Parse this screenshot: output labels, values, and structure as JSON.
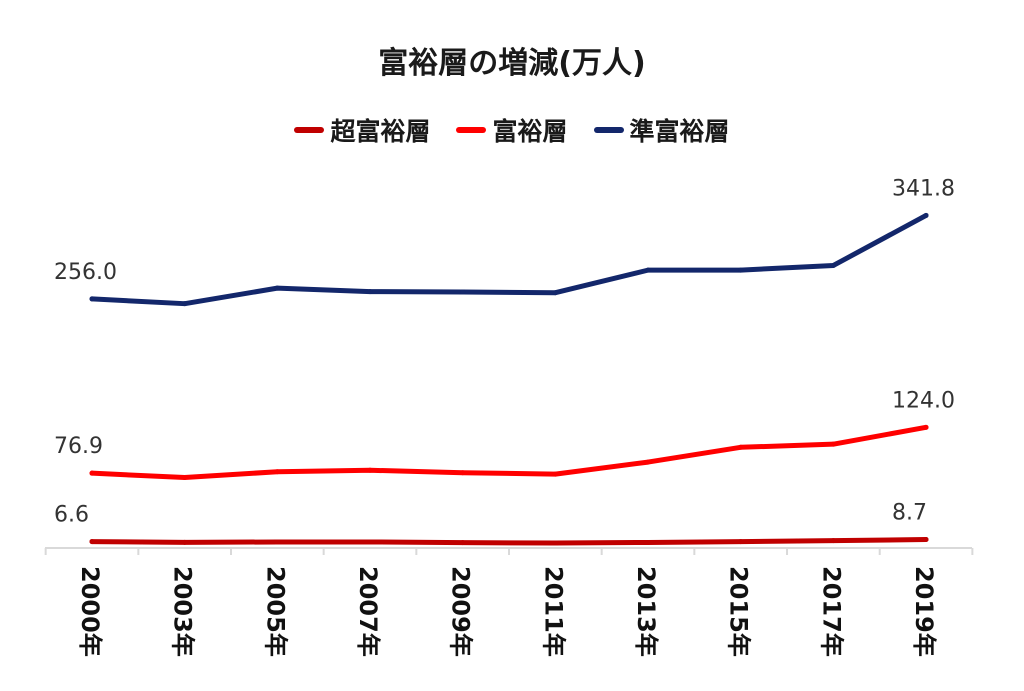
{
  "chart_data": {
    "type": "line",
    "title": "富裕層の増減(万人)",
    "categories": [
      "2000年",
      "2003年",
      "2005年",
      "2007年",
      "2009年",
      "2011年",
      "2013年",
      "2015年",
      "2017年",
      "2019年"
    ],
    "series": [
      {
        "name": "超富裕層",
        "color": "#c00000",
        "values": [
          6.6,
          5.8,
          6.2,
          6.2,
          5.5,
          5.1,
          5.7,
          6.6,
          7.6,
          8.7
        ],
        "labels": [
          {
            "index": 0,
            "text": "6.6"
          },
          {
            "index": 9,
            "text": "8.7"
          }
        ]
      },
      {
        "name": "富裕層",
        "color": "#ff0000",
        "values": [
          76.9,
          72.4,
          78.4,
          79.9,
          77.4,
          75.9,
          88.3,
          103.5,
          106.7,
          124.0
        ],
        "labels": [
          {
            "index": 0,
            "text": "76.9"
          },
          {
            "index": 9,
            "text": "124.0"
          }
        ]
      },
      {
        "name": "準富裕層",
        "color": "#13276b",
        "values": [
          256.0,
          251.1,
          267.1,
          263.5,
          263.1,
          262.4,
          285.6,
          285.6,
          290.4,
          341.8
        ],
        "labels": [
          {
            "index": 0,
            "text": "256.0"
          },
          {
            "index": 9,
            "text": "341.8"
          }
        ]
      }
    ],
    "ylim": [
      0,
      370
    ],
    "grid": false,
    "legend_position": "top"
  }
}
